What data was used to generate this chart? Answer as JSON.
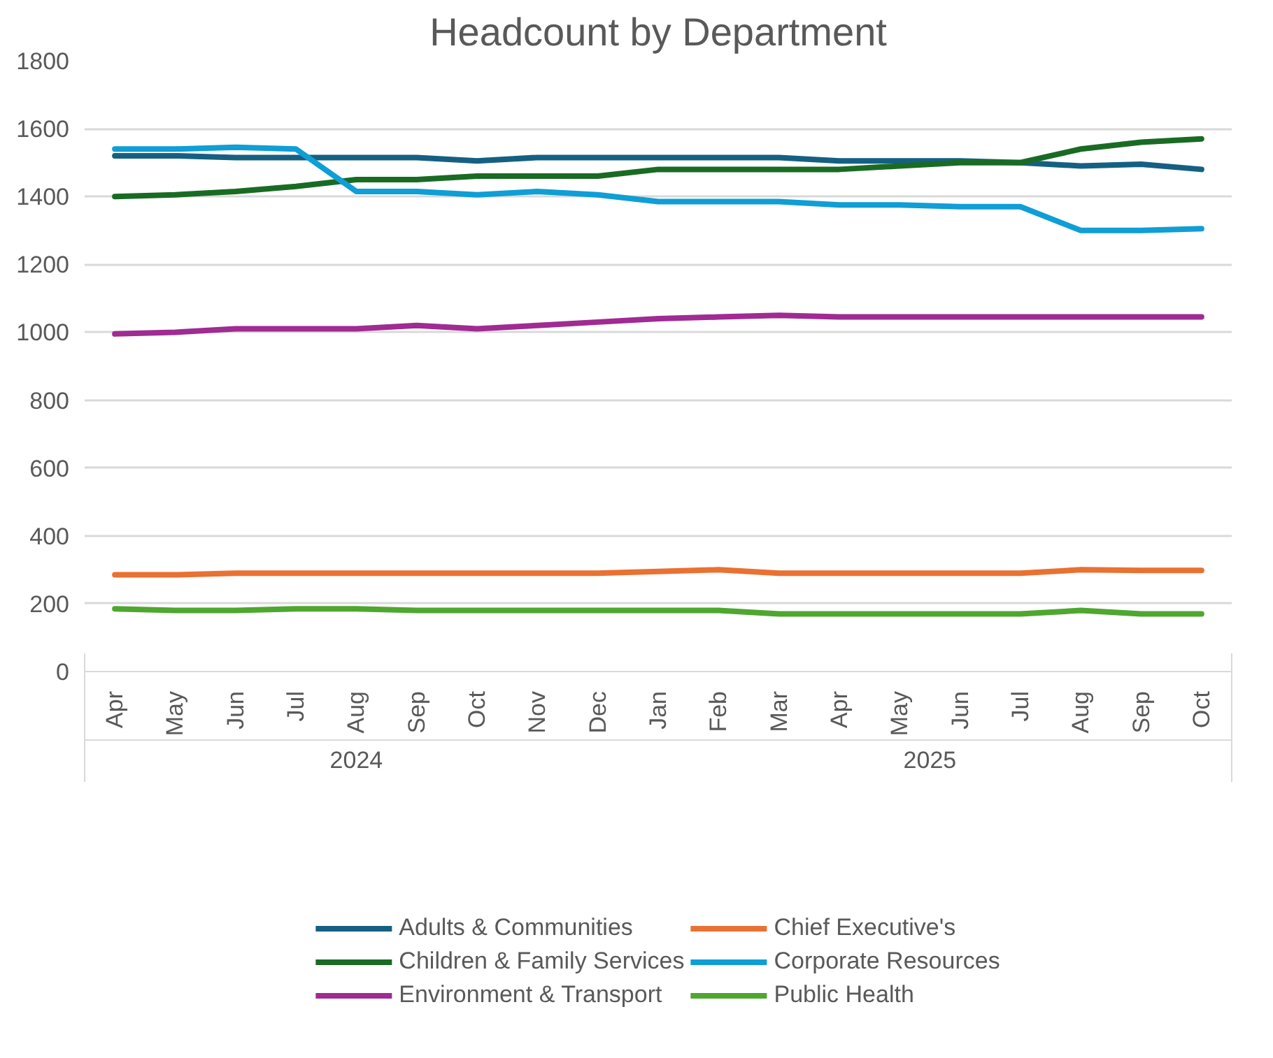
{
  "chart_data": {
    "type": "line",
    "title": "Headcount by Department",
    "categories": [
      "Apr",
      "May",
      "Jun",
      "Jul",
      "Aug",
      "Sep",
      "Oct",
      "Nov",
      "Dec",
      "Jan",
      "Feb",
      "Mar",
      "Apr",
      "May",
      "Jun",
      "Jul",
      "Aug",
      "Sep",
      "Oct"
    ],
    "annotations": [
      "2024",
      "2025"
    ],
    "series": [
      {
        "name": "Adults & Communities",
        "color": "#156082",
        "values": [
          1520,
          1520,
          1515,
          1515,
          1515,
          1515,
          1505,
          1515,
          1515,
          1515,
          1515,
          1515,
          1505,
          1505,
          1505,
          1500,
          1490,
          1495,
          1480
        ]
      },
      {
        "name": "Chief Executive's",
        "color": "#e97132",
        "values": [
          285,
          285,
          290,
          290,
          290,
          290,
          290,
          290,
          290,
          295,
          300,
          290,
          290,
          290,
          290,
          290,
          300,
          298,
          298
        ]
      },
      {
        "name": "Children & Family Services",
        "color": "#196b24",
        "values": [
          1400,
          1405,
          1415,
          1430,
          1450,
          1450,
          1460,
          1460,
          1460,
          1480,
          1480,
          1480,
          1480,
          1490,
          1500,
          1500,
          1540,
          1560,
          1570
        ]
      },
      {
        "name": "Corporate Resources",
        "color": "#0f9ed5",
        "values": [
          1540,
          1540,
          1545,
          1540,
          1415,
          1415,
          1405,
          1415,
          1405,
          1385,
          1385,
          1385,
          1375,
          1375,
          1370,
          1370,
          1300,
          1300,
          1305
        ]
      },
      {
        "name": "Environment & Transport",
        "color": "#a02b93",
        "values": [
          995,
          1000,
          1010,
          1010,
          1010,
          1020,
          1010,
          1020,
          1030,
          1040,
          1045,
          1050,
          1045,
          1045,
          1045,
          1045,
          1045,
          1045,
          1045
        ]
      },
      {
        "name": "Public Health",
        "color": "#4ea72e",
        "values": [
          185,
          180,
          180,
          185,
          185,
          180,
          180,
          180,
          180,
          180,
          180,
          170,
          170,
          170,
          170,
          170,
          180,
          170,
          170
        ]
      }
    ],
    "ylim": [
      0,
      1800
    ],
    "yticks": [
      0,
      200,
      400,
      600,
      800,
      1000,
      1200,
      1400,
      1600,
      1800
    ],
    "grid": "y",
    "legend": "bottom",
    "marker": "none",
    "line_style": "solid"
  }
}
